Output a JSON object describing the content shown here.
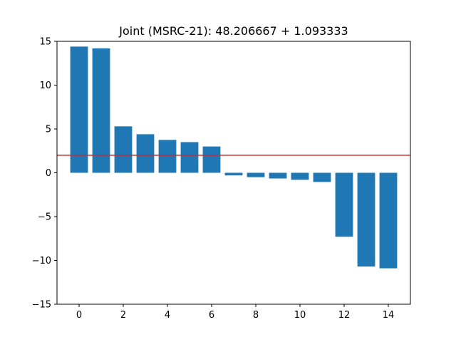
{
  "chart_data": {
    "type": "bar",
    "title": "Joint (MSRC-21): 48.206667 + 1.093333",
    "xlabel": "",
    "ylabel": "",
    "x": [
      0,
      1,
      2,
      3,
      4,
      5,
      6,
      7,
      8,
      9,
      10,
      11,
      12,
      13,
      14
    ],
    "values": [
      14.4,
      14.2,
      5.3,
      4.4,
      3.75,
      3.5,
      3.0,
      -0.3,
      -0.5,
      -0.65,
      -0.8,
      -1.05,
      -7.3,
      -10.7,
      -10.9
    ],
    "xlim": [
      -1.0,
      15.0
    ],
    "ylim": [
      -15,
      15
    ],
    "xticks": [
      0,
      2,
      4,
      6,
      8,
      10,
      12,
      14
    ],
    "yticks": [
      -15,
      -10,
      -5,
      0,
      5,
      10,
      15
    ],
    "hline": 2.0,
    "bar_color": "#1f77b4",
    "hline_color": "#d62728",
    "grid": false,
    "legend": "none"
  }
}
